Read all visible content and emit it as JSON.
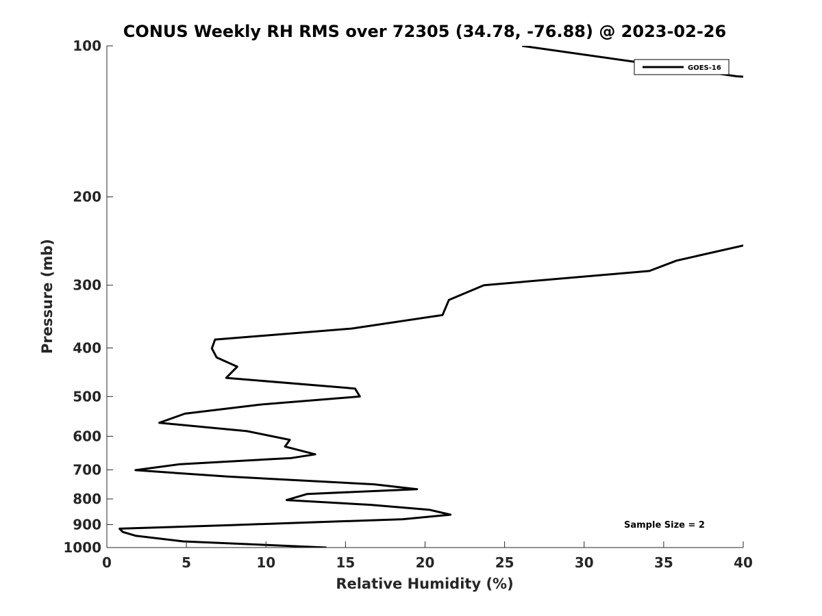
{
  "chart_data": {
    "type": "line",
    "title": "CONUS Weekly RH RMS over 72305 (34.78, -76.88) @ 2023-02-26",
    "xlabel": "Relative Humidity (%)",
    "ylabel": "Pressure (mb)",
    "xlim": [
      0,
      40
    ],
    "ylim": [
      100,
      1000
    ],
    "yscale": "log",
    "y_reversed": true,
    "grid": false,
    "legend_position": "top-right",
    "x_ticks": [
      "0",
      "5",
      "10",
      "15",
      "20",
      "25",
      "30",
      "35",
      "40"
    ],
    "y_ticks": [
      "100",
      "200",
      "300",
      "400",
      "500",
      "600",
      "700",
      "800",
      "900",
      "1000"
    ],
    "annotation": "Sample Size = 2",
    "series": [
      {
        "name": "GOES-16",
        "color": "#000000",
        "points": [
          {
            "x": 26.1,
            "y": 100
          },
          {
            "x": 39.6,
            "y": 115
          },
          {
            "x": 40.0,
            "y": 115.2
          },
          {
            "x": 40.5,
            "y": 116
          },
          {
            "x": null,
            "y": null
          },
          {
            "x": 40.5,
            "y": 248
          },
          {
            "x": 40.0,
            "y": 250
          },
          {
            "x": 35.8,
            "y": 268
          },
          {
            "x": 34.1,
            "y": 281
          },
          {
            "x": 23.7,
            "y": 300
          },
          {
            "x": 21.5,
            "y": 321
          },
          {
            "x": 21.1,
            "y": 344
          },
          {
            "x": 15.4,
            "y": 366
          },
          {
            "x": 6.8,
            "y": 385
          },
          {
            "x": 6.6,
            "y": 401
          },
          {
            "x": 6.9,
            "y": 418
          },
          {
            "x": 8.2,
            "y": 436
          },
          {
            "x": 7.5,
            "y": 459
          },
          {
            "x": 15.6,
            "y": 482
          },
          {
            "x": 15.9,
            "y": 500
          },
          {
            "x": 9.6,
            "y": 519
          },
          {
            "x": 4.9,
            "y": 541
          },
          {
            "x": 3.3,
            "y": 564
          },
          {
            "x": 8.8,
            "y": 586
          },
          {
            "x": 11.5,
            "y": 610
          },
          {
            "x": 11.2,
            "y": 629
          },
          {
            "x": 13.1,
            "y": 652
          },
          {
            "x": 11.6,
            "y": 663
          },
          {
            "x": 4.6,
            "y": 682
          },
          {
            "x": 1.8,
            "y": 701
          },
          {
            "x": 7.6,
            "y": 722
          },
          {
            "x": 16.8,
            "y": 748
          },
          {
            "x": 19.5,
            "y": 765
          },
          {
            "x": 12.6,
            "y": 782
          },
          {
            "x": 11.3,
            "y": 804
          },
          {
            "x": 16.6,
            "y": 822
          },
          {
            "x": 20.3,
            "y": 841
          },
          {
            "x": 21.6,
            "y": 860
          },
          {
            "x": 18.6,
            "y": 878
          },
          {
            "x": 7.8,
            "y": 902
          },
          {
            "x": 0.8,
            "y": 917
          },
          {
            "x": 1.0,
            "y": 931
          },
          {
            "x": 1.8,
            "y": 947
          },
          {
            "x": 4.8,
            "y": 972
          },
          {
            "x": 13.8,
            "y": 1000
          }
        ]
      }
    ]
  }
}
